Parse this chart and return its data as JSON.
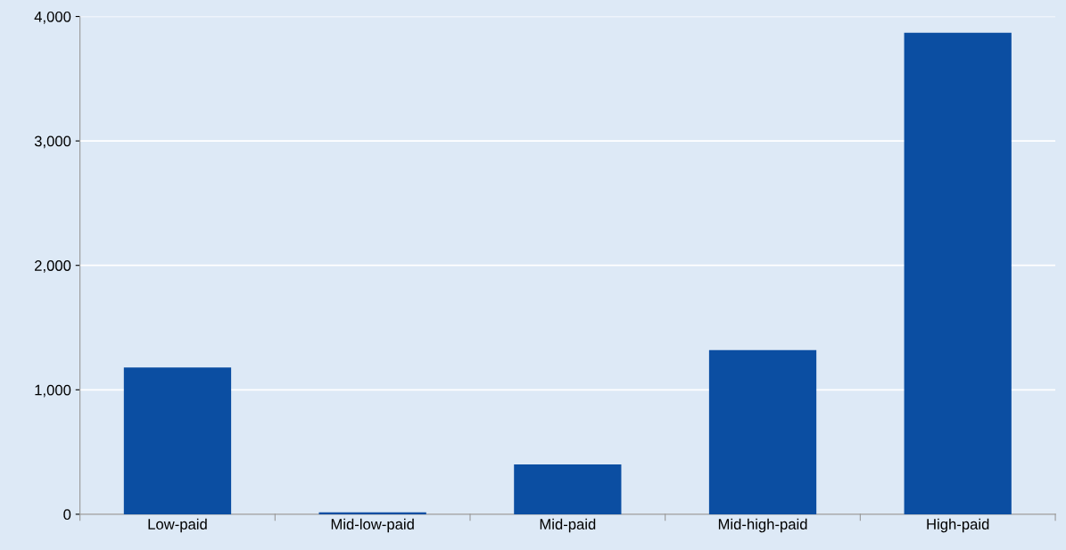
{
  "chart_data": {
    "type": "bar",
    "categories": [
      "Low-paid",
      "Mid-low-paid",
      "Mid-paid",
      "Mid-high-paid",
      "High-paid"
    ],
    "values": [
      1180,
      15,
      400,
      1320,
      3870
    ],
    "color": "#0b4ea2",
    "ylim": [
      0,
      4000
    ],
    "yticks": [
      {
        "value": 0,
        "label": "0"
      },
      {
        "value": 1000,
        "label": "1,000"
      },
      {
        "value": 2000,
        "label": "2,000"
      },
      {
        "value": 3000,
        "label": "3,000"
      },
      {
        "value": 4000,
        "label": "4,000"
      }
    ],
    "grid": "y"
  }
}
